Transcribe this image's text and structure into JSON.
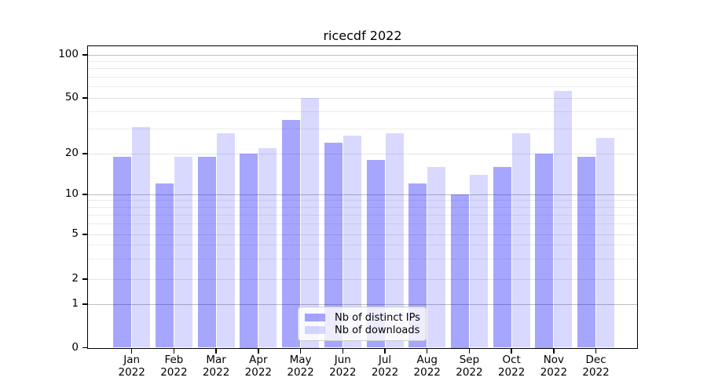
{
  "figure": {
    "title": "ricecdf 2022"
  },
  "legend": {
    "position": "lower center",
    "items": [
      {
        "id": "distinct-ips",
        "label": "Nb of distinct IPs"
      },
      {
        "id": "downloads",
        "label": "Nb of downloads"
      }
    ]
  },
  "colors": {
    "distinct_ips_bar": "rgba(0,0,255,0.35)",
    "downloads_bar": "rgba(0,0,255,0.15)",
    "grid_major": "#bdbdbd",
    "grid_mid": "#e4e4e8",
    "grid_minor": "#ececef",
    "spine": "#000000",
    "text": "#000000",
    "legend_border": "#cccccc",
    "legend_bg": "rgba(255,255,255,0.8)"
  },
  "axes": {
    "y_tick_values": [
      0,
      1,
      2,
      5,
      10,
      20,
      50,
      100
    ],
    "y_major_grid_values": [
      1,
      10,
      100
    ],
    "y_mid_grid_values": [
      2,
      5,
      20,
      50
    ],
    "y_minor_grid_values": [
      3,
      4,
      6,
      7,
      8,
      9,
      30,
      40,
      60,
      70,
      80,
      90
    ],
    "x_tick_year": "2022"
  },
  "chart_data": {
    "type": "bar",
    "title": "ricecdf 2022",
    "categories": [
      "Jan 2022",
      "Feb 2022",
      "Mar 2022",
      "Apr 2022",
      "May 2022",
      "Jun 2022",
      "Jul 2022",
      "Aug 2022",
      "Sep 2022",
      "Oct 2022",
      "Nov 2022",
      "Dec 2022"
    ],
    "series": [
      {
        "name": "Nb of distinct IPs",
        "values": [
          19,
          12,
          19,
          20,
          35,
          24,
          18,
          12,
          10,
          16,
          20,
          19
        ]
      },
      {
        "name": "Nb of downloads",
        "values": [
          31,
          19,
          28,
          22,
          50,
          27,
          28,
          16,
          14,
          28,
          56,
          26
        ]
      }
    ],
    "yscale": "symlog",
    "y_ticks": [
      0,
      1,
      2,
      5,
      10,
      20,
      50,
      100
    ],
    "ylim": [
      0,
      115
    ],
    "grid": true,
    "legend_position": "lower center",
    "xlabel": "",
    "ylabel": ""
  }
}
